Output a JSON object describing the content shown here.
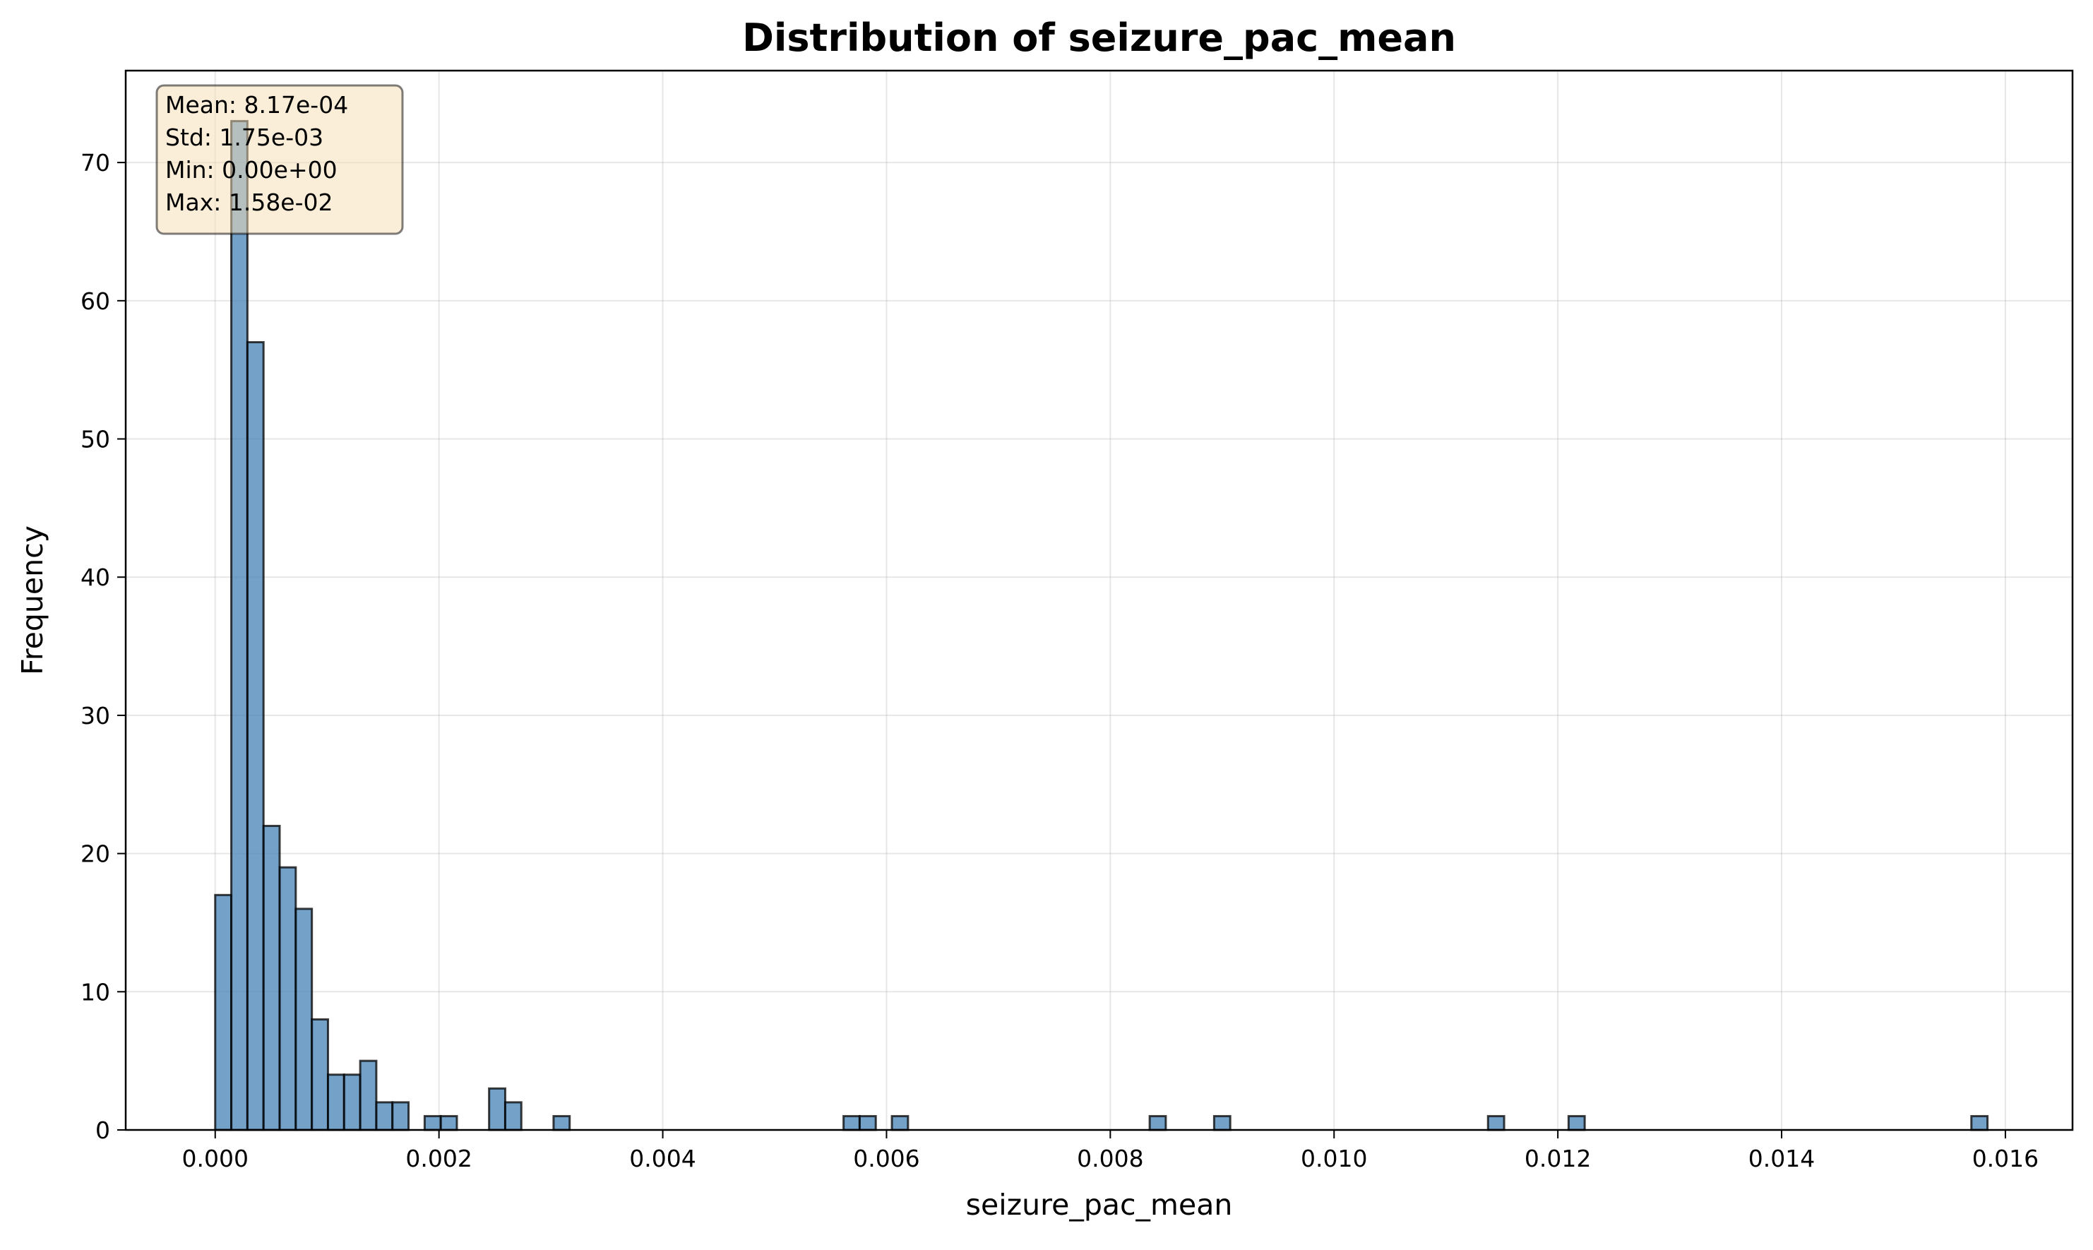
{
  "chart_data": {
    "type": "bar",
    "title": "Distribution of seizure_pac_mean",
    "xlabel": "seizure_pac_mean",
    "ylabel": "Frequency",
    "xlim": [
      -0.0008,
      0.0166
    ],
    "ylim": [
      0,
      76.65
    ],
    "grid": true,
    "bar_color": "#4682b4",
    "bar_edge_color": "#000000",
    "bins": {
      "start": 0.0,
      "width": 0.000144,
      "counts": [
        17,
        73,
        57,
        22,
        19,
        16,
        8,
        4,
        4,
        5,
        2,
        2,
        0,
        1,
        1,
        0,
        0,
        3,
        2,
        0,
        0,
        1,
        0,
        0,
        0,
        0,
        0,
        0,
        0,
        0,
        0,
        0,
        0,
        0,
        0,
        0,
        0,
        0,
        0,
        1,
        1,
        0,
        1,
        0,
        0,
        0,
        0,
        0,
        0,
        0,
        0,
        0,
        0,
        0,
        0,
        0,
        0,
        0,
        1,
        0,
        0,
        0,
        1,
        0,
        0,
        0,
        0,
        0,
        0,
        0,
        0,
        0,
        0,
        0,
        0,
        0,
        0,
        0,
        0,
        1,
        0,
        0,
        0,
        0,
        1,
        0,
        0,
        0,
        0,
        0,
        0,
        0,
        0,
        0,
        0,
        0,
        0,
        0,
        0,
        0,
        0,
        0,
        0,
        0,
        0,
        0,
        0,
        0,
        0,
        1
      ]
    },
    "x_ticks": [
      0.0,
      0.002,
      0.004,
      0.006,
      0.008,
      0.01,
      0.012,
      0.014,
      0.016
    ],
    "x_tick_labels": [
      "0.000",
      "0.002",
      "0.004",
      "0.006",
      "0.008",
      "0.010",
      "0.012",
      "0.014",
      "0.016"
    ],
    "y_ticks": [
      0,
      10,
      20,
      30,
      40,
      50,
      60,
      70
    ],
    "y_tick_labels": [
      "0",
      "10",
      "20",
      "30",
      "40",
      "50",
      "60",
      "70"
    ],
    "annotation": {
      "placement": "top-left",
      "lines": [
        "Mean: 8.17e-04",
        "Std: 1.75e-03",
        "Min: 0.00e+00",
        "Max: 1.58e-02"
      ],
      "background": "#f5deb3",
      "edge_color": "#000000"
    }
  }
}
